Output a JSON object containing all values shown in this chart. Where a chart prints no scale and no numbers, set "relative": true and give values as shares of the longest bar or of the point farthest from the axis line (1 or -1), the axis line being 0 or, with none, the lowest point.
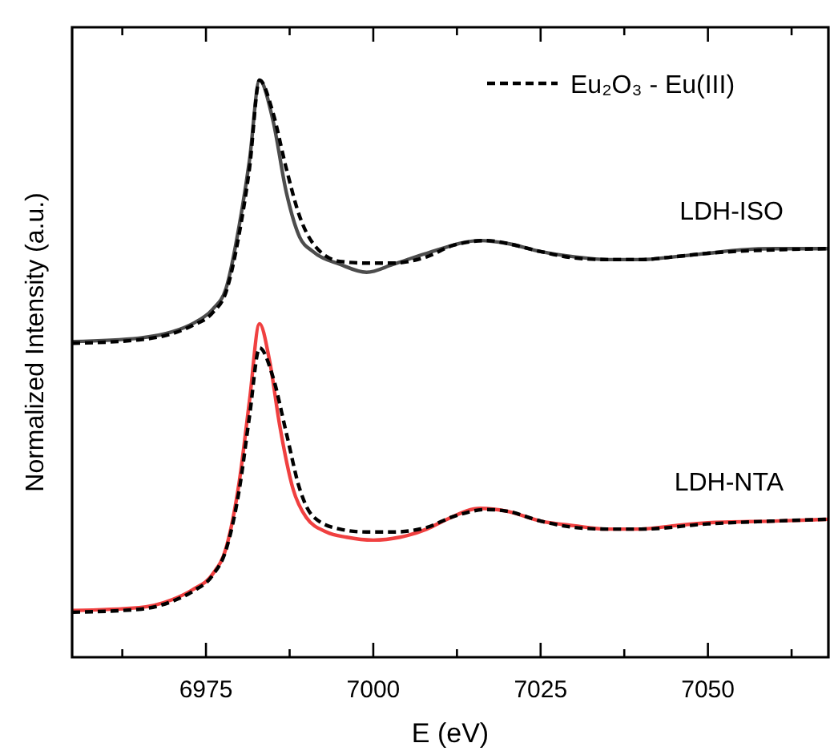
{
  "chart_data": {
    "type": "line",
    "relative": true,
    "xlabel": "E (eV)",
    "ylabel": "Normalized Intensity (a.u.)",
    "xlim": [
      6955,
      7068
    ],
    "xticks": [
      {
        "value": 6962.5,
        "label": null
      },
      6975,
      {
        "value": 6987.5,
        "label": null
      },
      7000,
      {
        "value": 7012.5,
        "label": null
      },
      7025,
      {
        "value": 7037.5,
        "label": null
      },
      7050,
      {
        "value": 7062.5,
        "label": null
      }
    ],
    "legend": "top right",
    "marker": "none",
    "series": [
      {
        "name": "LDH-ISO",
        "color": "#4d4d4d",
        "line_style": "solid",
        "x": [
          6955,
          6965,
          6970,
          6973,
          6976,
          6978,
          6980,
          6981.5,
          6983,
          6985,
          6987,
          6989,
          6991,
          6995,
          6999,
          7003,
          7008,
          7016,
          7020,
          7025,
          7030,
          7035,
          7040,
          7045,
          7050,
          7055,
          7060,
          7068
        ],
        "values": [
          0.547,
          0.553,
          0.564,
          0.578,
          0.603,
          0.639,
          0.75,
          0.861,
          1,
          0.931,
          0.806,
          0.728,
          0.703,
          0.681,
          0.667,
          0.681,
          0.7,
          0.722,
          0.717,
          0.703,
          0.694,
          0.689,
          0.689,
          0.694,
          0.7,
          0.706,
          0.708,
          0.708
        ]
      },
      {
        "name": "Eu₂O₃ - Eu(III)",
        "color": "#000000",
        "line_style": "dashed",
        "x": [
          6955,
          6965,
          6970,
          6973,
          6976,
          6978,
          6980,
          6981.5,
          6983,
          6985,
          6987,
          6989,
          6991,
          6995,
          6999,
          7003,
          7008,
          7012,
          7017,
          7020,
          7025,
          7030,
          7035,
          7040,
          7045,
          7050,
          7060,
          7068
        ],
        "values": [
          0.544,
          0.55,
          0.561,
          0.575,
          0.597,
          0.633,
          0.736,
          0.847,
          1,
          0.944,
          0.847,
          0.764,
          0.717,
          0.686,
          0.683,
          0.683,
          0.694,
          0.714,
          0.722,
          0.717,
          0.703,
          0.692,
          0.689,
          0.689,
          0.694,
          0.7,
          0.706,
          0.708
        ]
      },
      {
        "name": "LDH-NTA",
        "color": "#f04040",
        "line_style": "solid",
        "x": [
          6955,
          6965,
          6970,
          6973,
          6976,
          6978,
          6980,
          6981.5,
          6983,
          6984.5,
          6986,
          6988,
          6990,
          6993,
          6996,
          7000,
          7004,
          7008,
          7011,
          7016,
          7020,
          7025,
          7030,
          7035,
          7040,
          7045,
          7050,
          7060,
          7068
        ],
        "values": [
          0.081,
          0.086,
          0.1,
          0.117,
          0.144,
          0.189,
          0.306,
          0.444,
          0.578,
          0.514,
          0.403,
          0.292,
          0.242,
          0.217,
          0.208,
          0.203,
          0.208,
          0.222,
          0.239,
          0.258,
          0.253,
          0.236,
          0.228,
          0.222,
          0.222,
          0.228,
          0.233,
          0.236,
          0.239
        ]
      },
      {
        "color": "#000000",
        "line_style": "dashed",
        "x": [
          6955,
          6965,
          6970,
          6973,
          6976,
          6978,
          6980,
          6981.5,
          6983,
          6985,
          6987,
          6989,
          6991,
          6995,
          6999,
          7003,
          7008,
          7012,
          7017,
          7020,
          7025,
          7030,
          7035,
          7040,
          7050,
          7060,
          7068
        ],
        "values": [
          0.078,
          0.083,
          0.097,
          0.114,
          0.142,
          0.186,
          0.292,
          0.417,
          0.536,
          0.486,
          0.389,
          0.292,
          0.244,
          0.222,
          0.217,
          0.217,
          0.225,
          0.244,
          0.256,
          0.253,
          0.236,
          0.225,
          0.222,
          0.222,
          0.231,
          0.236,
          0.239
        ]
      }
    ]
  }
}
